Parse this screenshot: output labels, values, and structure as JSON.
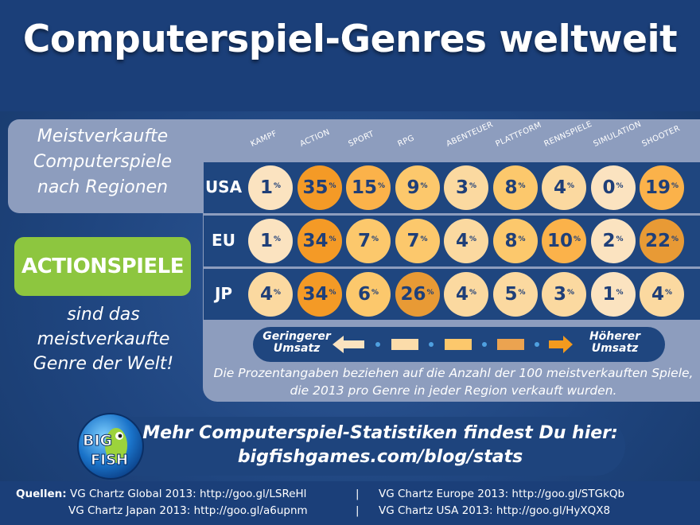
{
  "title": "Computerspiel-Genres weltweit",
  "subtitle_lines": [
    "Meistverkaufte",
    "Computerspiele",
    "nach Regionen"
  ],
  "highlight": {
    "label": "ACTIONSPIELE",
    "text_lines": [
      "sind das",
      "meistverkaufte",
      "Genre der Welt!"
    ]
  },
  "chart_data": {
    "type": "table",
    "unit": "%",
    "columns": [
      "KAMPF",
      "ACTION",
      "SPORT",
      "RPG",
      "ABENTEUER",
      "PLATTFORM",
      "RENNSPIELE",
      "SIMULATION",
      "SHOOTER"
    ],
    "rows": [
      {
        "region": "USA",
        "values": [
          1,
          35,
          15,
          9,
          3,
          8,
          4,
          0,
          19
        ]
      },
      {
        "region": "EU",
        "values": [
          1,
          34,
          7,
          7,
          4,
          8,
          10,
          2,
          22
        ]
      },
      {
        "region": "JP",
        "values": [
          4,
          34,
          6,
          26,
          4,
          5,
          3,
          1,
          4
        ]
      }
    ],
    "legend": {
      "low": "Geringerer Umsatz",
      "high": "Höherer Umsatz"
    },
    "color_scale": [
      "#fbe3c0",
      "#fbd9a0",
      "#fcc86c",
      "#fbb24a",
      "#f49a26",
      "#e89a35"
    ]
  },
  "note": "Die Prozentangaben beziehen auf die Anzahl der 100 meistverkauften Spiele, die 2013 pro Genre in jeder Region verkauft wurden.",
  "legend_low_lines": [
    "Geringerer",
    "Umsatz"
  ],
  "legend_high_lines": [
    "Höherer",
    "Umsatz"
  ],
  "promo": {
    "line1": "Mehr Computerspiel-Statistiken findest Du hier:",
    "line2": "bigfishgames.com/blog/stats"
  },
  "logo": {
    "line1": "BIG",
    "line2": "FISH"
  },
  "sources": {
    "label": "Quellen:",
    "items": [
      "VG Chartz Global 2013: http://goo.gl/LSReHl",
      "VG Chartz Europe 2013: http://goo.gl/STGkQb",
      "VG Chartz Japan 2013: http://goo.gl/a6upnm",
      "VG Chartz USA 2013: http://goo.gl/HyXQX8"
    ],
    "separator": "|"
  }
}
